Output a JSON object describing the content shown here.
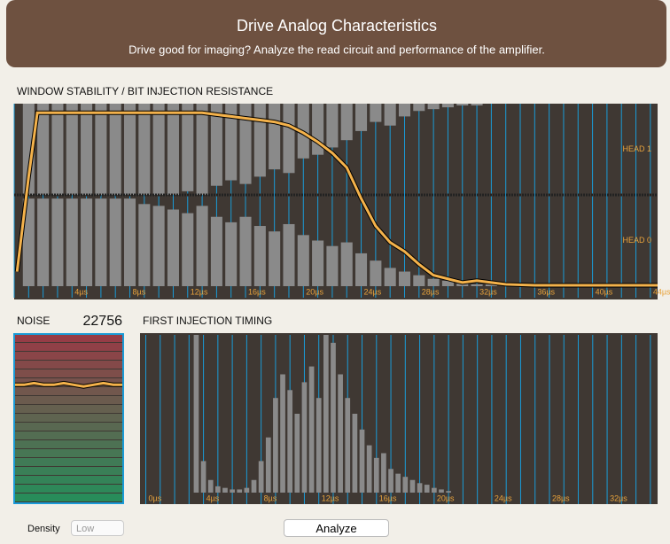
{
  "header": {
    "title": "Drive Analog Characteristics",
    "subtitle": "Drive good for imaging? Analyze the read circuit and performance of the amplifier."
  },
  "window_chart": {
    "title": "WINDOW STABILITY / BIT INJECTION RESISTANCE",
    "xlim": [
      0,
      44.5
    ],
    "ylim": [
      0,
      100
    ],
    "grid_step": 1,
    "xticks": [
      {
        "value": 4,
        "label": "4µs"
      },
      {
        "value": 8,
        "label": "8µs"
      },
      {
        "value": 12,
        "label": "12µs"
      },
      {
        "value": 16,
        "label": "16µs"
      },
      {
        "value": 20,
        "label": "20µs"
      },
      {
        "value": 24,
        "label": "24µs"
      },
      {
        "value": 28,
        "label": "28µs"
      },
      {
        "value": 32,
        "label": "32µs"
      },
      {
        "value": 36,
        "label": "36µs"
      },
      {
        "value": 40,
        "label": "40µs"
      },
      {
        "value": 44,
        "label": "44µs"
      }
    ],
    "head_labels": [
      {
        "label": "HEAD 1",
        "value": 75
      },
      {
        "label": "HEAD 0",
        "value": 25
      }
    ],
    "divider": 50,
    "bar_x": [
      1,
      2,
      3,
      4,
      5,
      6,
      7,
      8,
      9,
      10,
      11,
      12,
      13,
      14,
      15,
      16,
      17,
      18,
      19,
      20,
      21,
      22,
      23,
      24,
      25,
      26,
      27,
      28,
      29,
      30,
      31,
      32,
      33
    ],
    "head1_bottom": [
      50,
      50,
      50,
      50,
      50,
      50,
      50,
      50,
      50,
      50,
      50,
      52,
      50,
      55,
      58,
      56,
      60,
      64,
      62,
      70,
      72,
      76,
      80,
      85,
      90,
      88,
      93,
      96,
      97,
      98,
      99,
      99,
      100
    ],
    "head0_top": [
      48,
      48,
      48,
      48,
      48,
      48,
      48,
      48,
      45,
      44,
      42,
      40,
      44,
      38,
      35,
      38,
      33,
      30,
      34,
      28,
      25,
      22,
      24,
      18,
      14,
      10,
      8,
      6,
      4,
      3,
      2,
      1,
      1
    ],
    "curve_x": [
      0.2,
      1,
      1.6,
      3,
      6,
      10,
      13,
      14,
      15,
      16,
      17,
      18,
      19,
      20,
      21,
      22,
      23,
      24,
      25,
      26,
      27,
      28,
      29,
      30,
      31,
      32,
      33,
      34,
      36,
      40,
      44.5
    ],
    "curve_y": [
      8,
      60,
      95,
      95,
      95,
      95,
      95,
      94,
      93,
      92,
      91,
      90,
      88,
      84,
      79,
      73,
      65,
      48,
      33,
      24,
      19,
      12,
      6,
      4,
      2,
      3,
      2,
      1,
      0.5,
      0.5,
      0.5
    ]
  },
  "noise": {
    "label": "NOISE",
    "value": 22756,
    "ylim": [
      0,
      100
    ],
    "trace": [
      70,
      70,
      71,
      70,
      70,
      71,
      70,
      69,
      70,
      71,
      70,
      70
    ]
  },
  "timing_chart": {
    "title": "FIRST INJECTION TIMING",
    "xlim": [
      -0.4,
      35.5
    ],
    "ylim": [
      0,
      100
    ],
    "grid_step": 1,
    "xticks": [
      {
        "value": 0,
        "label": "0µs"
      },
      {
        "value": 4,
        "label": "4µs"
      },
      {
        "value": 8,
        "label": "8µs"
      },
      {
        "value": 12,
        "label": "12µs"
      },
      {
        "value": 16,
        "label": "16µs"
      },
      {
        "value": 20,
        "label": "20µs"
      },
      {
        "value": 24,
        "label": "24µs"
      },
      {
        "value": 28,
        "label": "28µs"
      },
      {
        "value": 32,
        "label": "32µs"
      }
    ],
    "bar_x": [
      3,
      3.5,
      4,
      4.5,
      5,
      5.5,
      6,
      6.5,
      7,
      7.5,
      8,
      8.5,
      9,
      9.5,
      10,
      10.5,
      11,
      11.5,
      12,
      12.5,
      13,
      13.5,
      14,
      14.5,
      15,
      15.5,
      16,
      16.5,
      17,
      17.5,
      18,
      18.5,
      19,
      19.5,
      20,
      20.5,
      21
    ],
    "values": [
      0,
      100,
      20,
      8,
      4,
      3,
      2,
      2,
      3,
      8,
      20,
      35,
      60,
      75,
      65,
      50,
      70,
      80,
      60,
      100,
      95,
      75,
      60,
      50,
      40,
      30,
      22,
      25,
      15,
      12,
      10,
      8,
      6,
      5,
      3,
      2,
      1
    ]
  },
  "controls": {
    "density_label": "Density",
    "density_value": "Low",
    "button": "Analyze"
  }
}
